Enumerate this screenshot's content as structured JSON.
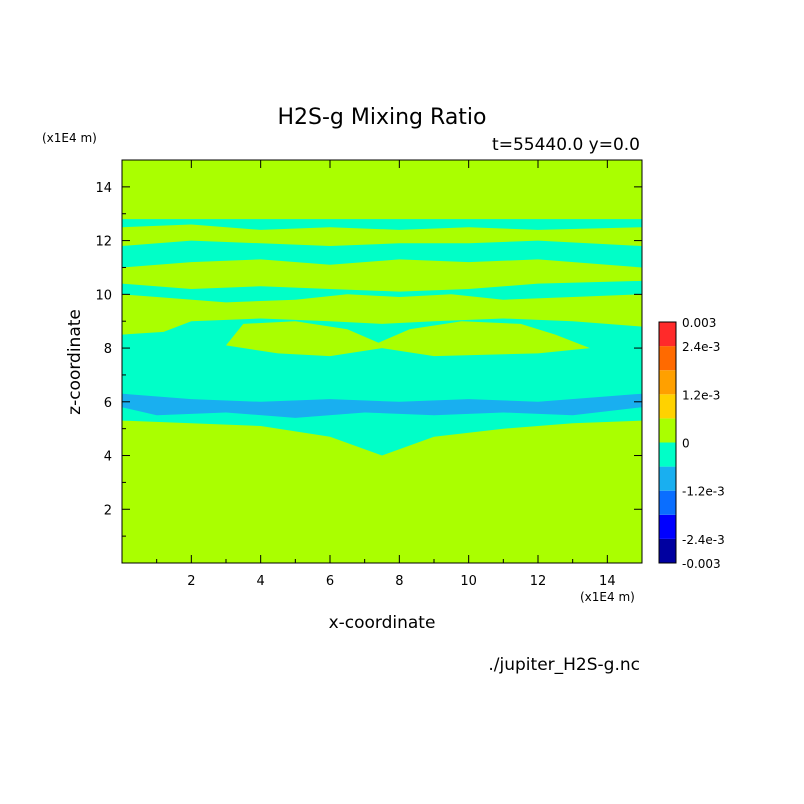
{
  "chart_data": {
    "type": "heatmap",
    "title": "H2S-g Mixing Ratio",
    "subtitle": "t=55440.0 y=0.0",
    "xlabel": "x-coordinate",
    "ylabel": "z-coordinate",
    "x_unit": "(x1E4 m)",
    "y_unit": "(x1E4 m)",
    "xlim": [
      0,
      15
    ],
    "ylim": [
      0,
      15
    ],
    "x_ticks": [
      2,
      4,
      6,
      8,
      10,
      12,
      14
    ],
    "y_ticks": [
      2,
      4,
      6,
      8,
      10,
      12,
      14
    ],
    "colorbar": {
      "min": -0.003,
      "max": 0.003,
      "levels": [
        -0.003,
        -0.0024,
        -0.0018,
        -0.0012,
        -0.0006,
        0,
        0.0006,
        0.0012,
        0.0018,
        0.0024,
        0.003
      ],
      "labels": [
        "-0.003",
        "-2.4e-3",
        "-1.2e-3",
        "0",
        "1.2e-3",
        "2.4e-3",
        "0.003"
      ],
      "label_values": [
        -0.003,
        -0.0024,
        -0.0012,
        0,
        0.0012,
        0.0024,
        0.003
      ],
      "colors": [
        "#0000a0",
        "#0000ff",
        "#0a6eff",
        "#19aff0",
        "#00ffc8",
        "#aaff00",
        "#ffd200",
        "#ffa000",
        "#ff6a00",
        "#ff2a2a"
      ]
    },
    "field": {
      "background_value": 0.0003,
      "regions": [
        {
          "value": -0.0003,
          "points": [
            [
              0,
              12.8
            ],
            [
              15,
              12.8
            ],
            [
              15,
              5.3
            ],
            [
              13,
              5.2
            ],
            [
              11,
              5.0
            ],
            [
              9,
              4.7
            ],
            [
              7.5,
              4.0
            ],
            [
              6,
              4.7
            ],
            [
              4,
              5.1
            ],
            [
              2,
              5.2
            ],
            [
              0,
              5.3
            ]
          ]
        },
        {
          "value": 0.0003,
          "points": [
            [
              0,
              12.5
            ],
            [
              2,
              12.6
            ],
            [
              4,
              12.4
            ],
            [
              6,
              12.5
            ],
            [
              8,
              12.4
            ],
            [
              10,
              12.5
            ],
            [
              12,
              12.4
            ],
            [
              15,
              12.5
            ],
            [
              15,
              11.8
            ],
            [
              12,
              12.0
            ],
            [
              10,
              11.9
            ],
            [
              8,
              11.9
            ],
            [
              6,
              11.8
            ],
            [
              4,
              11.9
            ],
            [
              2,
              12.0
            ],
            [
              0,
              11.8
            ]
          ]
        },
        {
          "value": 0.0003,
          "points": [
            [
              0,
              11.0
            ],
            [
              2,
              11.2
            ],
            [
              4,
              11.3
            ],
            [
              6,
              11.1
            ],
            [
              8,
              11.3
            ],
            [
              10,
              11.2
            ],
            [
              12,
              11.3
            ],
            [
              15,
              11.0
            ],
            [
              15,
              10.5
            ],
            [
              12,
              10.4
            ],
            [
              10,
              10.2
            ],
            [
              8,
              10.1
            ],
            [
              6,
              10.2
            ],
            [
              4,
              10.3
            ],
            [
              2,
              10.2
            ],
            [
              0,
              10.4
            ]
          ]
        },
        {
          "value": 0.0003,
          "points": [
            [
              0,
              10.0
            ],
            [
              1,
              9.9
            ],
            [
              3,
              9.7
            ],
            [
              5,
              9.8
            ],
            [
              6.5,
              10.0
            ],
            [
              8,
              9.9
            ],
            [
              9.5,
              10.0
            ],
            [
              11,
              9.8
            ],
            [
              13,
              9.9
            ],
            [
              15,
              10.0
            ],
            [
              15,
              8.8
            ],
            [
              13,
              9.0
            ],
            [
              11,
              9.1
            ],
            [
              9,
              9.0
            ],
            [
              7.5,
              8.9
            ],
            [
              6,
              9.0
            ],
            [
              4,
              9.1
            ],
            [
              2,
              9.0
            ],
            [
              1.2,
              8.6
            ],
            [
              0,
              8.5
            ]
          ]
        },
        {
          "value": 0.0003,
          "points": [
            [
              3.5,
              8.9
            ],
            [
              5,
              9.0
            ],
            [
              6.5,
              8.7
            ],
            [
              7.4,
              8.2
            ],
            [
              8.3,
              8.7
            ],
            [
              9.8,
              9.0
            ],
            [
              11.5,
              8.9
            ],
            [
              12.5,
              8.5
            ],
            [
              13.5,
              8.0
            ],
            [
              12,
              7.8
            ],
            [
              9,
              7.7
            ],
            [
              7.5,
              8.0
            ],
            [
              6,
              7.7
            ],
            [
              4.5,
              7.8
            ],
            [
              3,
              8.1
            ]
          ]
        },
        {
          "value": -0.0009,
          "points": [
            [
              0,
              6.3
            ],
            [
              2,
              6.1
            ],
            [
              4,
              6.0
            ],
            [
              6,
              6.1
            ],
            [
              8,
              6.0
            ],
            [
              10,
              6.1
            ],
            [
              12,
              6.0
            ],
            [
              15,
              6.3
            ],
            [
              15,
              5.8
            ],
            [
              13,
              5.5
            ],
            [
              11,
              5.6
            ],
            [
              9,
              5.5
            ],
            [
              7,
              5.6
            ],
            [
              5,
              5.4
            ],
            [
              3,
              5.6
            ],
            [
              1,
              5.5
            ],
            [
              0,
              5.8
            ]
          ]
        }
      ]
    }
  },
  "footer": {
    "source_file": "./jupiter_H2S-g.nc"
  }
}
